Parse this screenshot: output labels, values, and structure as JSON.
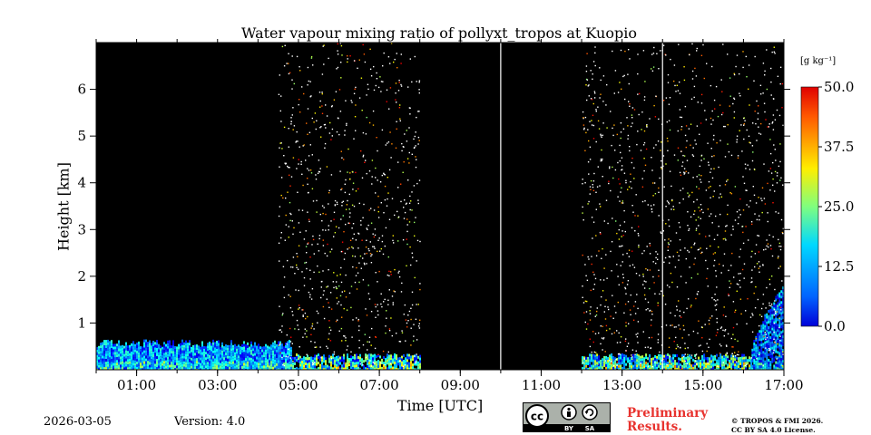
{
  "chart_data": {
    "type": "heatmap",
    "title": "Water vapour mixing ratio of pollyxt_tropos at Kuopio",
    "xlabel": "Time [UTC]",
    "ylabel": "Height [km]",
    "xlim_hours": [
      0,
      17
    ],
    "ylim_km": [
      0,
      7
    ],
    "x_tick_labels": [
      {
        "t": 1,
        "label": "01:00"
      },
      {
        "t": 3,
        "label": "03:00"
      },
      {
        "t": 5,
        "label": "05:00"
      },
      {
        "t": 7,
        "label": "07:00"
      },
      {
        "t": 9,
        "label": "09:00"
      },
      {
        "t": 11,
        "label": "11:00"
      },
      {
        "t": 13,
        "label": "13:00"
      },
      {
        "t": 15,
        "label": "15:00"
      },
      {
        "t": 17,
        "label": "17:00"
      }
    ],
    "y_tick_labels": [
      {
        "h": 1,
        "label": "1"
      },
      {
        "h": 2,
        "label": "2"
      },
      {
        "h": 3,
        "label": "3"
      },
      {
        "h": 4,
        "label": "4"
      },
      {
        "h": 5,
        "label": "5"
      },
      {
        "h": 6,
        "label": "6"
      }
    ],
    "vertical_markers_hours": [
      10,
      14
    ],
    "colorbar": {
      "unit": "[g kg⁻¹]",
      "min": 0.0,
      "max": 50.0,
      "tick_labels": [
        "0.0",
        "12.5",
        "25.0",
        "37.5",
        "50.0"
      ],
      "colormap": "jet"
    },
    "features": [
      {
        "name": "low-level moisture layer",
        "t_start": 0,
        "t_end": 4.8,
        "height_top_km": 0.65,
        "value_range": [
          5,
          22
        ]
      },
      {
        "name": "surface layer",
        "t_start": 4.8,
        "t_end": 8.0,
        "height_top_km": 0.35,
        "value_range": [
          5,
          30
        ]
      },
      {
        "name": "surface layer",
        "t_start": 12.0,
        "t_end": 16.2,
        "height_top_km": 0.35,
        "value_range": [
          5,
          30
        ]
      },
      {
        "name": "growing boundary layer",
        "t_start": 16.2,
        "t_end": 17,
        "height_top_km": 1.9,
        "value_range": [
          3,
          20
        ]
      }
    ],
    "no_data_intervals": [
      [
        8.0,
        12.0
      ]
    ],
    "noise_intervals": [
      [
        4.5,
        8.0
      ],
      [
        12.0,
        17.0
      ]
    ]
  },
  "footer": {
    "date": "2026-03-05",
    "version": "Version: 4.0",
    "preliminary_line1": "Preliminary",
    "preliminary_line2": "Results.",
    "copyright_line1": "© TROPOS & FMI 2026.",
    "copyright_line2": "CC BY SA 4.0 License.",
    "license_badge_cc": "cc",
    "license_badge_by": "BY",
    "license_badge_sa": "SA"
  },
  "colors": {
    "plot_background": "#000000",
    "marker_line": "#ffffff",
    "preliminary_text": "#e8322e",
    "badge_background": "#abb1aa"
  }
}
